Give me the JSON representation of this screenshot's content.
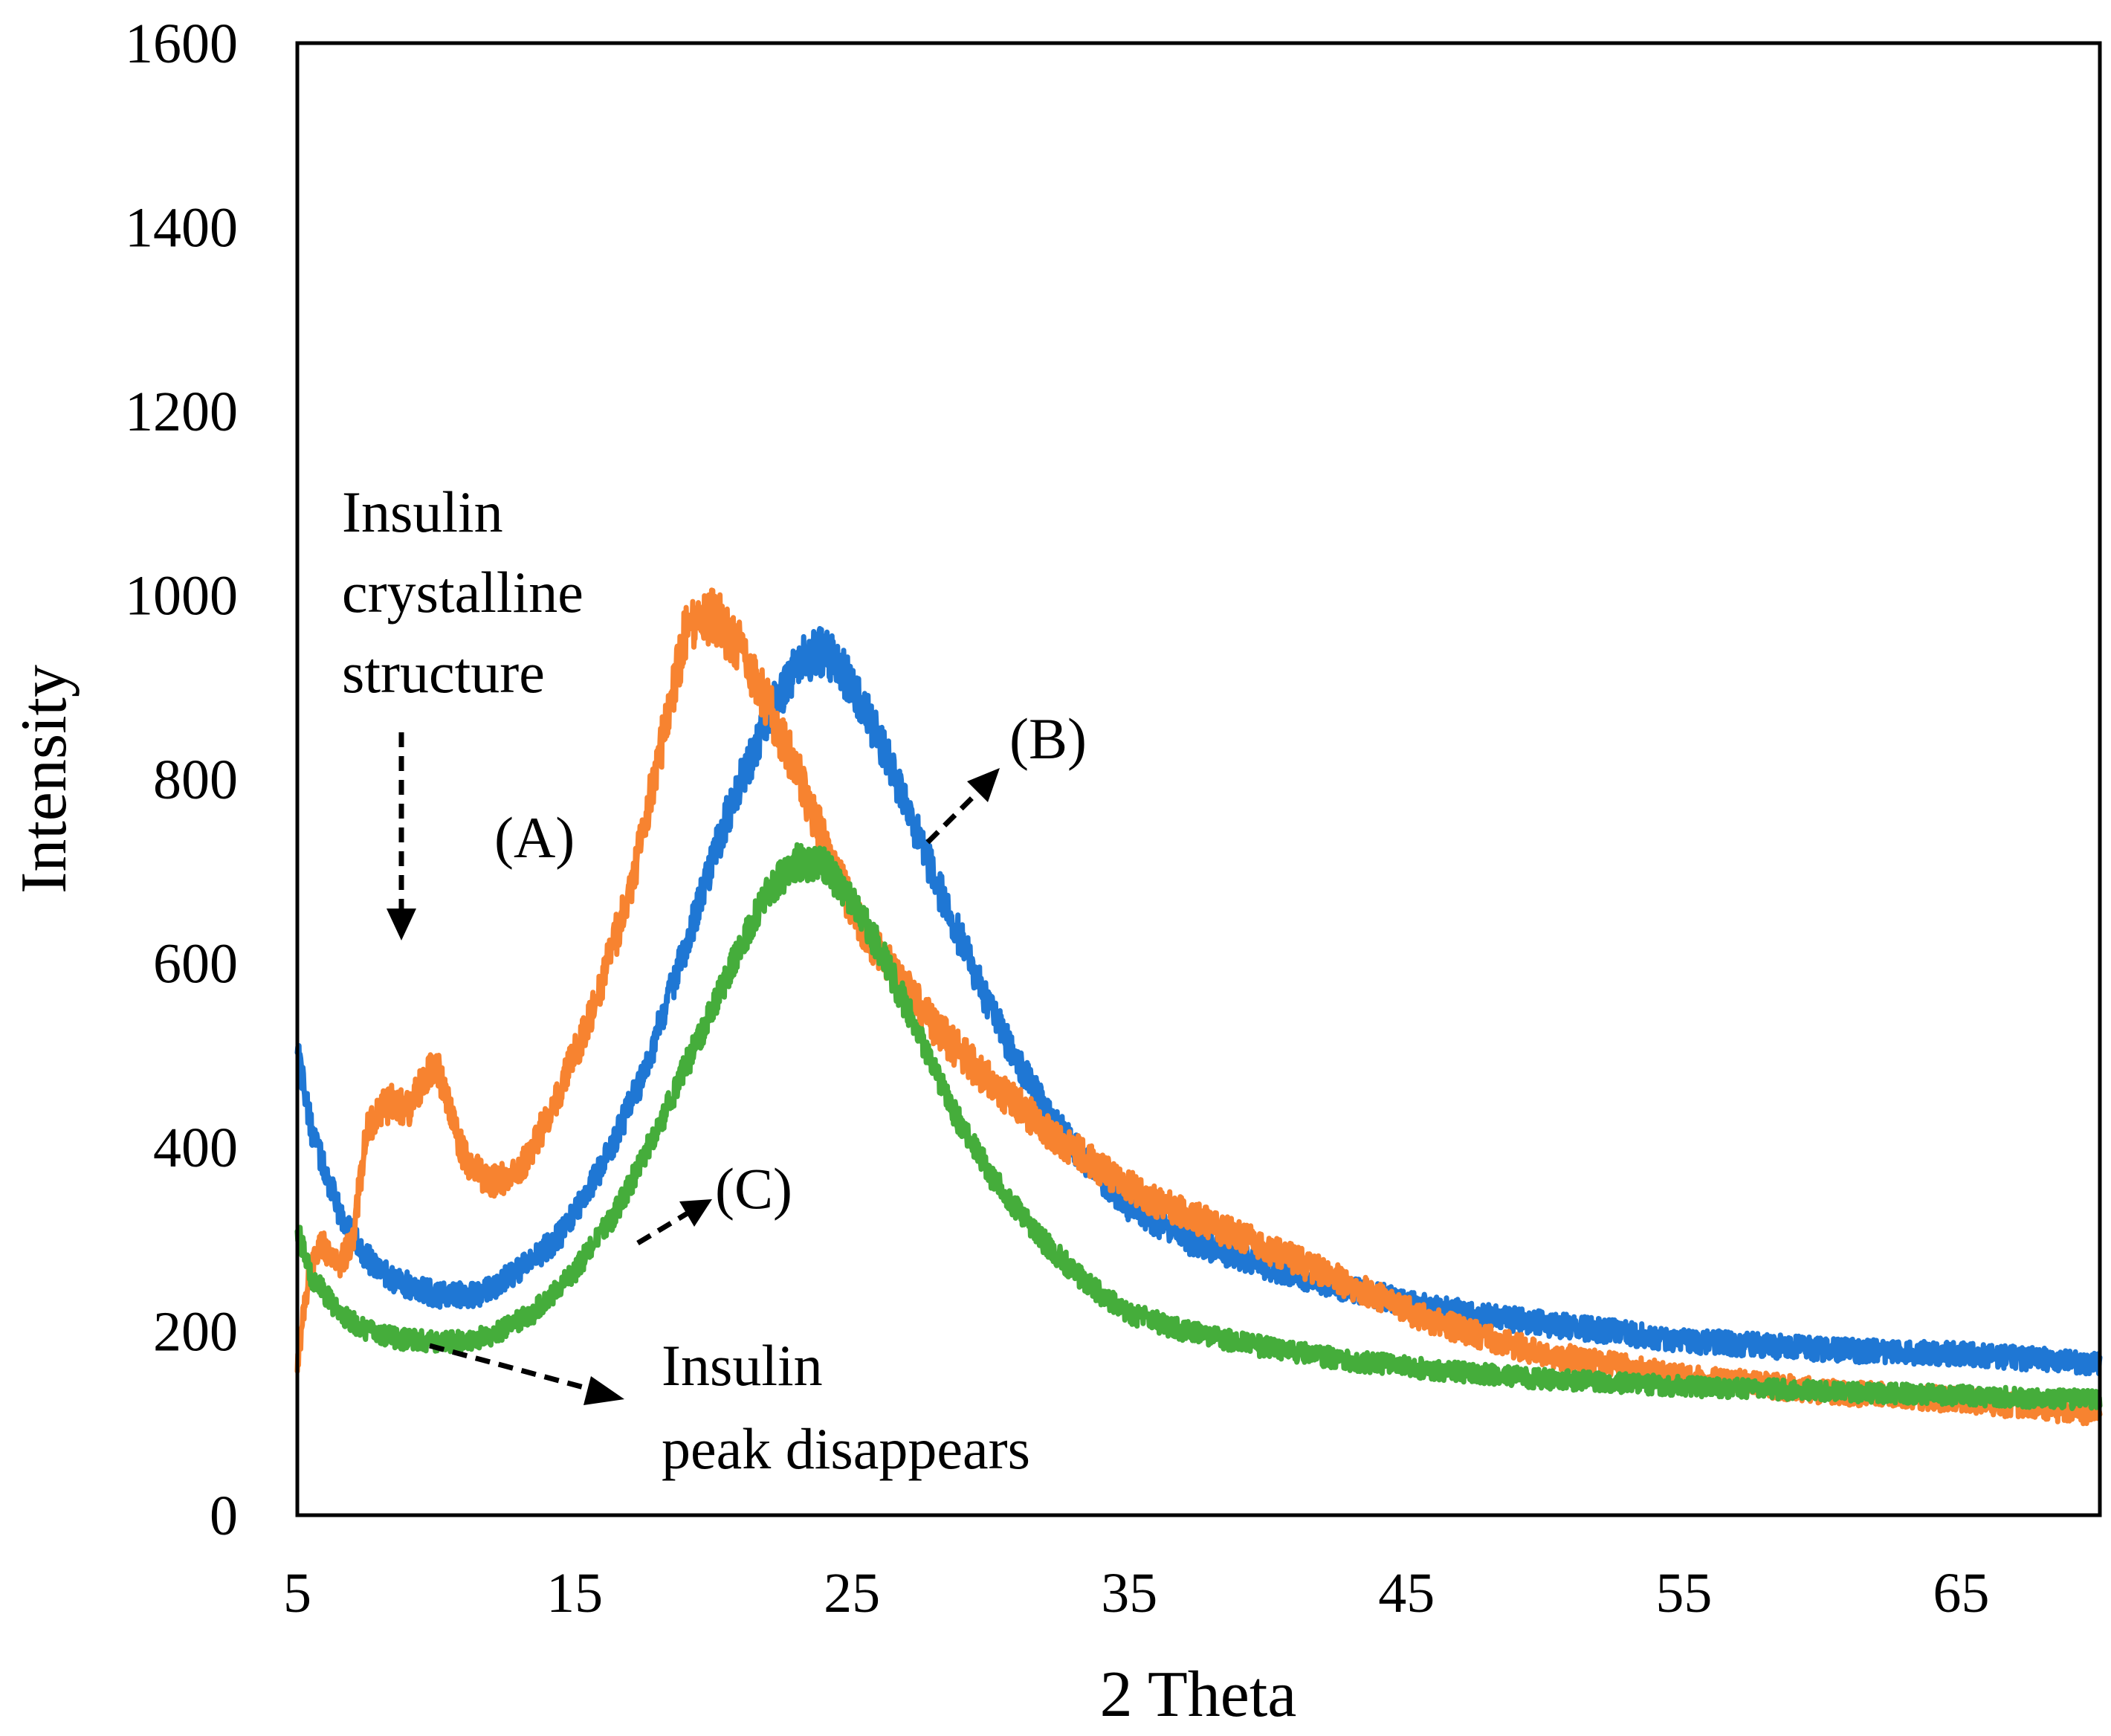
{
  "chart_data": {
    "type": "line",
    "title": "",
    "xlabel": "2 Theta",
    "ylabel": "Intensity",
    "xlim": [
      5,
      70
    ],
    "ylim": [
      0,
      1600
    ],
    "x_ticks": [
      "5",
      "15",
      "25",
      "35",
      "45",
      "55",
      "65"
    ],
    "y_ticks": [
      "0",
      "200",
      "400",
      "600",
      "800",
      "1000",
      "1200",
      "1400",
      "1600"
    ],
    "grid": false,
    "series": [
      {
        "name": "(B)",
        "color": "#1f77d4",
        "noise": 16,
        "points": [
          [
            5,
            510
          ],
          [
            5.5,
            420
          ],
          [
            6.5,
            330
          ],
          [
            7.5,
            280
          ],
          [
            8.5,
            255
          ],
          [
            10,
            240
          ],
          [
            11.5,
            238
          ],
          [
            13,
            265
          ],
          [
            14.5,
            305
          ],
          [
            16,
            380
          ],
          [
            17.5,
            480
          ],
          [
            19,
            620
          ],
          [
            20.5,
            760
          ],
          [
            22,
            870
          ],
          [
            23,
            925
          ],
          [
            24,
            940
          ],
          [
            25,
            905
          ],
          [
            26,
            840
          ],
          [
            27,
            770
          ],
          [
            28,
            690
          ],
          [
            29,
            620
          ],
          [
            30,
            550
          ],
          [
            31,
            490
          ],
          [
            32,
            440
          ],
          [
            33,
            400
          ],
          [
            34,
            365
          ],
          [
            35,
            335
          ],
          [
            37,
            300
          ],
          [
            40,
            270
          ],
          [
            43,
            245
          ],
          [
            46,
            225
          ],
          [
            50,
            208
          ],
          [
            55,
            190
          ],
          [
            60,
            180
          ],
          [
            65,
            175
          ],
          [
            70,
            165
          ]
        ]
      },
      {
        "name": "(A)",
        "color": "#f78330",
        "noise": 18,
        "points": [
          [
            5,
            160
          ],
          [
            5.3,
            240
          ],
          [
            5.8,
            300
          ],
          [
            6.5,
            270
          ],
          [
            7,
            300
          ],
          [
            7.5,
            420
          ],
          [
            8,
            440
          ],
          [
            8.5,
            450
          ],
          [
            9,
            440
          ],
          [
            9.5,
            470
          ],
          [
            10,
            490
          ],
          [
            10.5,
            440
          ],
          [
            11,
            390
          ],
          [
            12,
            360
          ],
          [
            13,
            375
          ],
          [
            14,
            430
          ],
          [
            15,
            500
          ],
          [
            16,
            580
          ],
          [
            17,
            680
          ],
          [
            18,
            820
          ],
          [
            19,
            960
          ],
          [
            20,
            980
          ],
          [
            21,
            940
          ],
          [
            22,
            880
          ],
          [
            23,
            810
          ],
          [
            24,
            730
          ],
          [
            25,
            660
          ],
          [
            26,
            610
          ],
          [
            27,
            570
          ],
          [
            28,
            530
          ],
          [
            30,
            470
          ],
          [
            32,
            420
          ],
          [
            34,
            375
          ],
          [
            36,
            340
          ],
          [
            40,
            290
          ],
          [
            43,
            250
          ],
          [
            46,
            210
          ],
          [
            50,
            175
          ],
          [
            55,
            150
          ],
          [
            60,
            135
          ],
          [
            65,
            125
          ],
          [
            70,
            110
          ]
        ]
      },
      {
        "name": "(C)",
        "color": "#45ad3b",
        "noise": 14,
        "points": [
          [
            5,
            310
          ],
          [
            5.5,
            260
          ],
          [
            6.5,
            220
          ],
          [
            7.5,
            200
          ],
          [
            9,
            190
          ],
          [
            10.5,
            188
          ],
          [
            12,
            195
          ],
          [
            13.5,
            220
          ],
          [
            15,
            265
          ],
          [
            16.5,
            330
          ],
          [
            18,
            420
          ],
          [
            19.5,
            520
          ],
          [
            21,
            620
          ],
          [
            22,
            680
          ],
          [
            23,
            710
          ],
          [
            24,
            705
          ],
          [
            25,
            670
          ],
          [
            26,
            615
          ],
          [
            27,
            550
          ],
          [
            28,
            480
          ],
          [
            29,
            420
          ],
          [
            30,
            370
          ],
          [
            31,
            330
          ],
          [
            32,
            295
          ],
          [
            33,
            265
          ],
          [
            34,
            240
          ],
          [
            35,
            220
          ],
          [
            37,
            200
          ],
          [
            40,
            182
          ],
          [
            43,
            168
          ],
          [
            46,
            158
          ],
          [
            50,
            148
          ],
          [
            55,
            140
          ],
          [
            60,
            135
          ],
          [
            65,
            130
          ],
          [
            70,
            125
          ]
        ]
      }
    ],
    "annotations": {
      "crystalline": [
        "Insulin",
        "crystalline",
        "structure"
      ],
      "label_a": "(A)",
      "label_b": "(B)",
      "label_c": "(C)",
      "disappears": [
        "Insulin",
        "peak disappears"
      ]
    }
  }
}
